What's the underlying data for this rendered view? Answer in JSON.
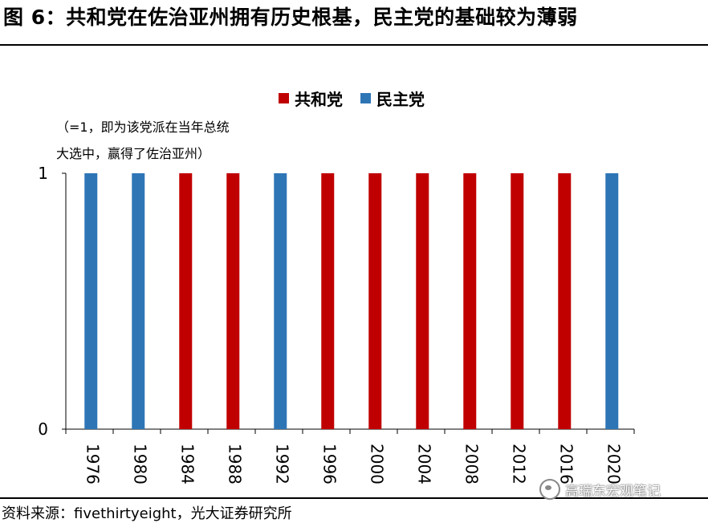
{
  "header": {
    "title": "图 6：共和党在佐治亚州拥有历史根基，民主党的基础较为薄弱"
  },
  "footer": {
    "source": "资料来源：fivethirtyeight，光大证券研究所",
    "watermark": "高瑞东宏观笔记"
  },
  "colors": {
    "republican": "#c00000",
    "democrat": "#2e75b6",
    "axis": "#000000"
  },
  "chart_data": {
    "type": "bar",
    "title": "",
    "note_line1": "（=1，即为该党派在当年总统",
    "note_line2": "大选中，赢得了佐治亚州）",
    "categories": [
      "1976",
      "1980",
      "1984",
      "1988",
      "1992",
      "1996",
      "2000",
      "2004",
      "2008",
      "2012",
      "2016",
      "2020"
    ],
    "series": [
      {
        "name": "共和党",
        "color": "#c00000",
        "values": [
          0,
          0,
          1,
          1,
          0,
          1,
          1,
          1,
          1,
          1,
          1,
          0
        ]
      },
      {
        "name": "民主党",
        "color": "#2e75b6",
        "values": [
          1,
          1,
          0,
          0,
          1,
          0,
          0,
          0,
          0,
          0,
          0,
          1
        ]
      }
    ],
    "yticks": [
      "0",
      "1"
    ],
    "ylim": [
      0,
      1
    ],
    "xlabel": "",
    "ylabel": "",
    "legend_position": "top-center"
  }
}
